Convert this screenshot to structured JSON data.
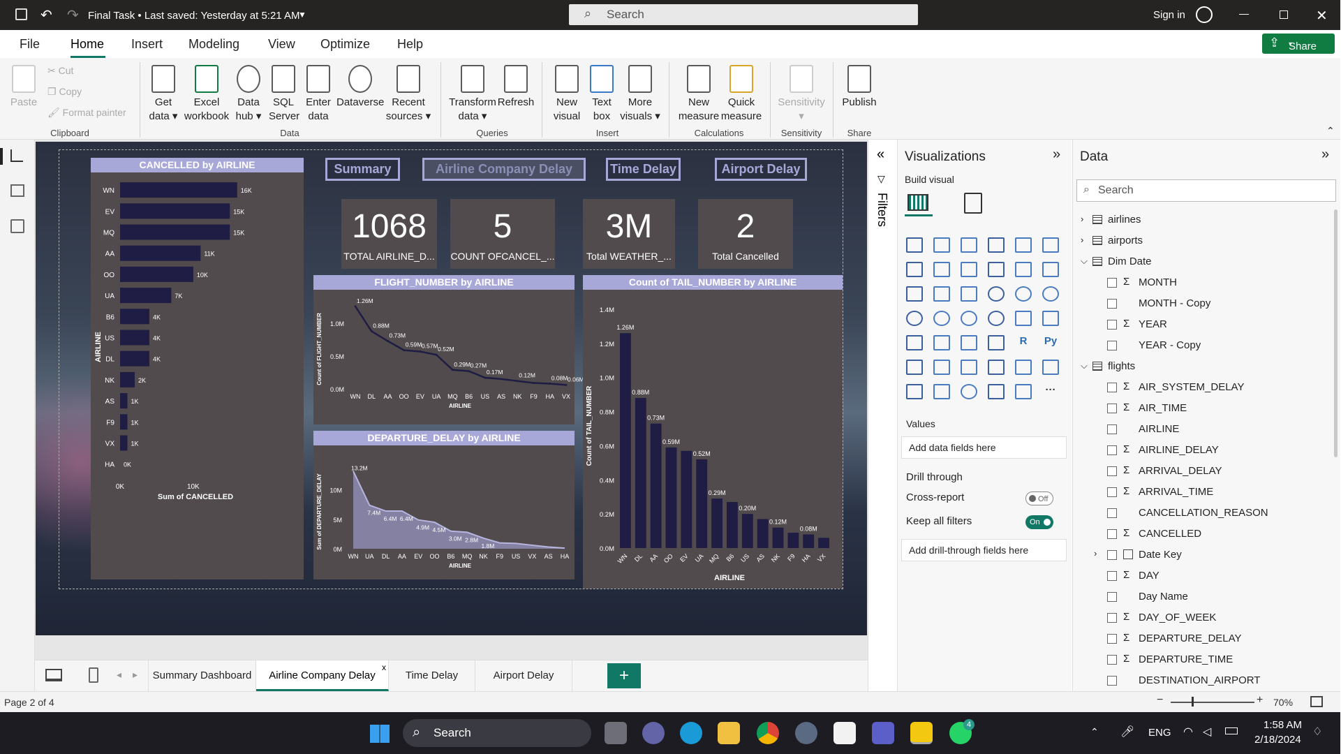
{
  "titlebar": {
    "title": "Final Task • Last saved: Yesterday at 5:21 AM",
    "search_placeholder": "Search",
    "signin": "Sign in"
  },
  "menu": [
    "File",
    "Home",
    "Insert",
    "Modeling",
    "View",
    "Optimize",
    "Help"
  ],
  "share_label": "Share",
  "ribbon": {
    "clipboard": {
      "paste": "Paste",
      "cut": "Cut",
      "copy": "Copy",
      "format_painter": "Format painter",
      "group": "Clipboard"
    },
    "data_buttons": [
      [
        "Get",
        "data"
      ],
      [
        "Excel",
        "workbook"
      ],
      [
        "Data",
        "hub"
      ],
      [
        "SQL",
        "Server"
      ],
      [
        "Enter",
        "data"
      ],
      [
        "Dataverse",
        ""
      ],
      [
        "Recent",
        "sources"
      ]
    ],
    "data_group": "Data",
    "queries_buttons": [
      [
        "Transform",
        "data"
      ],
      [
        "Refresh",
        ""
      ]
    ],
    "queries_group": "Queries",
    "insert_buttons": [
      [
        "New",
        "visual"
      ],
      [
        "Text",
        "box"
      ],
      [
        "More",
        "visuals"
      ]
    ],
    "insert_group": "Insert",
    "calc_buttons": [
      [
        "New",
        "measure"
      ],
      [
        "Quick",
        "measure"
      ]
    ],
    "calc_group": "Calculations",
    "sensitivity_button": "Sensitivity",
    "sensitivity_group": "Sensitivity",
    "publish_button": "Publish",
    "share_group": "Share"
  },
  "report": {
    "nav": [
      "Summary",
      "Airline Company Delay",
      "Time Delay",
      "Airport Delay"
    ],
    "kpis": [
      {
        "value": "1068",
        "label": "TOTAL  AIRLINE_D..."
      },
      {
        "value": "5",
        "label": "COUNT OFCANCEL_..."
      },
      {
        "value": "3M",
        "label": "Total  WEATHER_..."
      },
      {
        "value": "2",
        "label": "Total  Cancelled"
      }
    ]
  },
  "chart_data": [
    {
      "type": "bar",
      "title": "CANCELLED by AIRLINE",
      "orientation": "horizontal",
      "categories": [
        "WN",
        "EV",
        "MQ",
        "AA",
        "OO",
        "UA",
        "B6",
        "US",
        "DL",
        "NK",
        "AS",
        "F9",
        "VX",
        "HA"
      ],
      "values": [
        16000,
        15000,
        15000,
        11000,
        10000,
        7000,
        4000,
        4000,
        4000,
        2000,
        1000,
        1000,
        1000,
        0
      ],
      "data_labels": [
        "16K",
        "15K",
        "15K",
        "11K",
        "10K",
        "7K",
        "4K",
        "4K",
        "4K",
        "2K",
        "1K",
        "1K",
        "1K",
        "0K"
      ],
      "xlabel": "Sum of CANCELLED",
      "ylabel": "AIRLINE",
      "xticks": [
        "0K",
        "10K"
      ],
      "xlim": [
        0,
        16500
      ]
    },
    {
      "type": "line",
      "title": "FLIGHT_NUMBER by AIRLINE",
      "categories": [
        "WN",
        "DL",
        "AA",
        "OO",
        "EV",
        "UA",
        "MQ",
        "B6",
        "US",
        "AS",
        "NK",
        "F9",
        "HA",
        "VX"
      ],
      "values": [
        1.26,
        0.88,
        0.73,
        0.59,
        0.57,
        0.52,
        0.29,
        0.27,
        0.17,
        0.15,
        0.12,
        0.09,
        0.08,
        0.06
      ],
      "data_labels": [
        "1.26M",
        "0.88M",
        "0.73M",
        "0.59M",
        "0.57M",
        "0.52M",
        "0.29M",
        "0.27M",
        "0.17M",
        "",
        "0.12M",
        "",
        "0.08M",
        "0.06M"
      ],
      "xlabel": "AIRLINE",
      "ylabel": "Count of FLIGHT_NUMBER",
      "yticks": [
        "0.0M",
        "0.5M",
        "1.0M"
      ],
      "ylim": [
        0,
        1.3
      ]
    },
    {
      "type": "area",
      "title": "DEPARTURE_DELAY by AIRLINE",
      "categories": [
        "WN",
        "UA",
        "DL",
        "AA",
        "EV",
        "OO",
        "B6",
        "MQ",
        "NK",
        "F9",
        "US",
        "VX",
        "AS",
        "HA"
      ],
      "values": [
        13.2,
        7.4,
        6.4,
        6.4,
        4.9,
        4.5,
        3.0,
        2.8,
        1.8,
        1.0,
        0.9,
        0.6,
        0.3,
        0.1
      ],
      "data_labels": [
        "13.2M",
        "7.4M",
        "6.4M",
        "6.4M",
        "4.9M",
        "4.5M",
        "3.0M",
        "2.8M",
        "1.8M",
        "",
        "",
        "",
        "",
        ""
      ],
      "xlabel": "AIRLINE",
      "ylabel": "Sum of DEPARTURE_DELAY",
      "yticks": [
        "0M",
        "5M",
        "10M"
      ],
      "ylim": [
        0,
        14
      ]
    },
    {
      "type": "bar",
      "title": "Count of TAIL_NUMBER by AIRLINE",
      "categories": [
        "WN",
        "DL",
        "AA",
        "OO",
        "EV",
        "UA",
        "MQ",
        "B6",
        "US",
        "AS",
        "NK",
        "F9",
        "HA",
        "VX"
      ],
      "values": [
        1.26,
        0.88,
        0.73,
        0.59,
        0.57,
        0.52,
        0.29,
        0.27,
        0.2,
        0.17,
        0.12,
        0.09,
        0.08,
        0.06
      ],
      "data_labels": [
        "1.26M",
        "0.88M",
        "0.73M",
        "0.59M",
        "",
        "0.52M",
        "0.29M",
        "",
        "0.20M",
        "",
        "0.12M",
        "",
        "0.08M",
        ""
      ],
      "xlabel": "AIRLINE",
      "ylabel": "Count of TAIL_NUMBER",
      "yticks": [
        "0.0M",
        "0.2M",
        "0.4M",
        "0.6M",
        "0.8M",
        "1.0M",
        "1.2M",
        "1.4M"
      ],
      "ylim": [
        0,
        1.4
      ]
    }
  ],
  "filters_label": "Filters",
  "viz": {
    "title": "Visualizations",
    "build_visual": "Build visual",
    "values": "Values",
    "add_fields": "Add data fields here",
    "drill_through": "Drill through",
    "cross_report": "Cross-report",
    "cross_report_state": "Off",
    "keep_filters": "Keep all filters",
    "keep_filters_state": "On",
    "add_drill": "Add drill-through fields here",
    "r_label": "R",
    "py_label": "Py",
    "more": "···"
  },
  "data_pane": {
    "title": "Data",
    "search_placeholder": "Search",
    "items": [
      {
        "label": "airlines",
        "kind": "table",
        "expanded": false
      },
      {
        "label": "airports",
        "kind": "table",
        "expanded": false
      },
      {
        "label": "Dim Date",
        "kind": "table",
        "expanded": true
      },
      {
        "label": "MONTH",
        "kind": "sum"
      },
      {
        "label": "MONTH - Copy",
        "kind": "field"
      },
      {
        "label": "YEAR",
        "kind": "sum"
      },
      {
        "label": "YEAR - Copy",
        "kind": "field"
      },
      {
        "label": "flights",
        "kind": "table",
        "expanded": true
      },
      {
        "label": "AIR_SYSTEM_DELAY",
        "kind": "sum"
      },
      {
        "label": "AIR_TIME",
        "kind": "sum"
      },
      {
        "label": "AIRLINE",
        "kind": "field"
      },
      {
        "label": "AIRLINE_DELAY",
        "kind": "sum"
      },
      {
        "label": "ARRIVAL_DELAY",
        "kind": "sum"
      },
      {
        "label": "ARRIVAL_TIME",
        "kind": "sum"
      },
      {
        "label": "CANCELLATION_REASON",
        "kind": "field"
      },
      {
        "label": "CANCELLED",
        "kind": "sum"
      },
      {
        "label": "Date Key",
        "kind": "hier"
      },
      {
        "label": "DAY",
        "kind": "sum"
      },
      {
        "label": "Day Name",
        "kind": "field"
      },
      {
        "label": "DAY_OF_WEEK",
        "kind": "sum"
      },
      {
        "label": "DEPARTURE_DELAY",
        "kind": "sum"
      },
      {
        "label": "DEPARTURE_TIME",
        "kind": "sum"
      },
      {
        "label": "DESTINATION_AIRPORT",
        "kind": "field"
      }
    ]
  },
  "tabs": [
    "Summary Dashboard",
    "Airline Company Delay",
    "Time Delay",
    "Airport Delay"
  ],
  "active_tab": "Airline Company Delay",
  "status": {
    "page": "Page 2 of 4",
    "zoom": "70%"
  },
  "taskbar": {
    "search": "Search",
    "lang": "ENG",
    "time": "1:58 AM",
    "date": "2/18/2024",
    "badge": "4"
  },
  "colors": {
    "accent": "#a8a8d8",
    "bar": "#1f1d44",
    "card": "#524b4d",
    "share_green": "#107c41",
    "tab_accent": "#117865"
  }
}
